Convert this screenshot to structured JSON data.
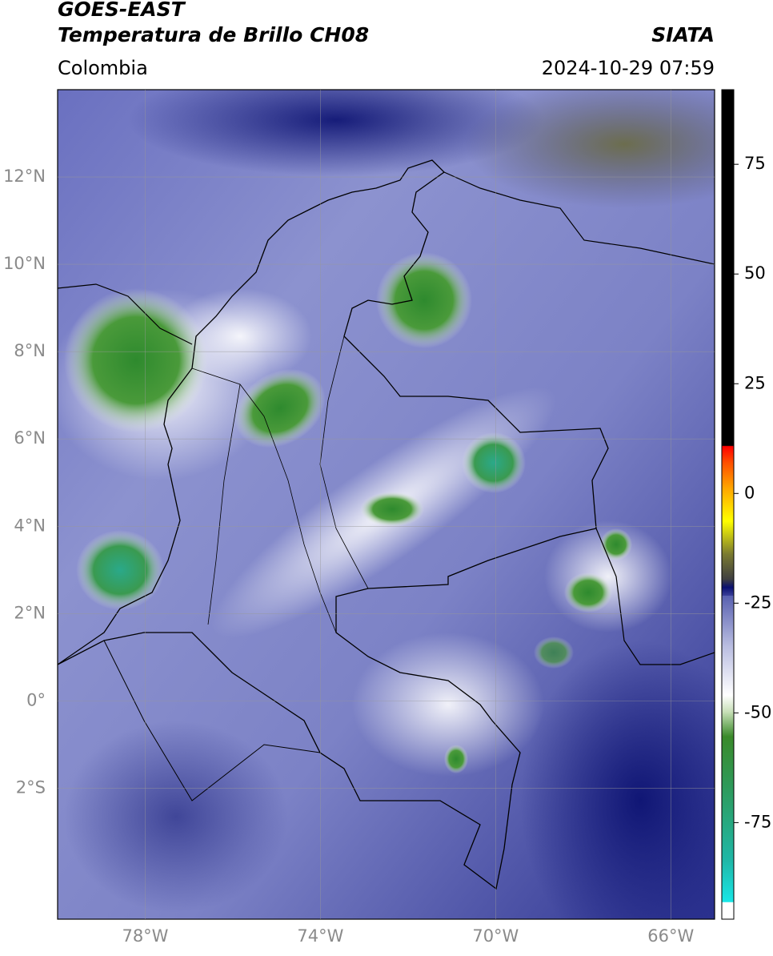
{
  "header": {
    "title_line1": "GOES-EAST",
    "title_line2": "Temperatura de Brillo CH08",
    "source": "SIATA",
    "region": "Colombia",
    "datetime": "2024-10-29 07:59"
  },
  "map": {
    "lonlim": [
      -80,
      -65
    ],
    "latlim": [
      -5,
      14
    ],
    "lonticks": [
      {
        "value": -78,
        "label": "78°W"
      },
      {
        "value": -74,
        "label": "74°W"
      },
      {
        "value": -70,
        "label": "70°W"
      },
      {
        "value": -66,
        "label": "66°W"
      }
    ],
    "latticks": [
      {
        "value": 12,
        "label": "12°N"
      },
      {
        "value": 10,
        "label": "10°N"
      },
      {
        "value": 8,
        "label": "8°N"
      },
      {
        "value": 6,
        "label": "6°N"
      },
      {
        "value": 4,
        "label": "4°N"
      },
      {
        "value": 2,
        "label": "2°N"
      },
      {
        "value": 0,
        "label": "0°"
      },
      {
        "value": -2,
        "label": "2°S"
      }
    ],
    "grid": true
  },
  "colorbar": {
    "lim": [
      -97,
      92
    ],
    "ticks": [
      75,
      50,
      25,
      0,
      -25,
      -50,
      -75
    ]
  }
}
